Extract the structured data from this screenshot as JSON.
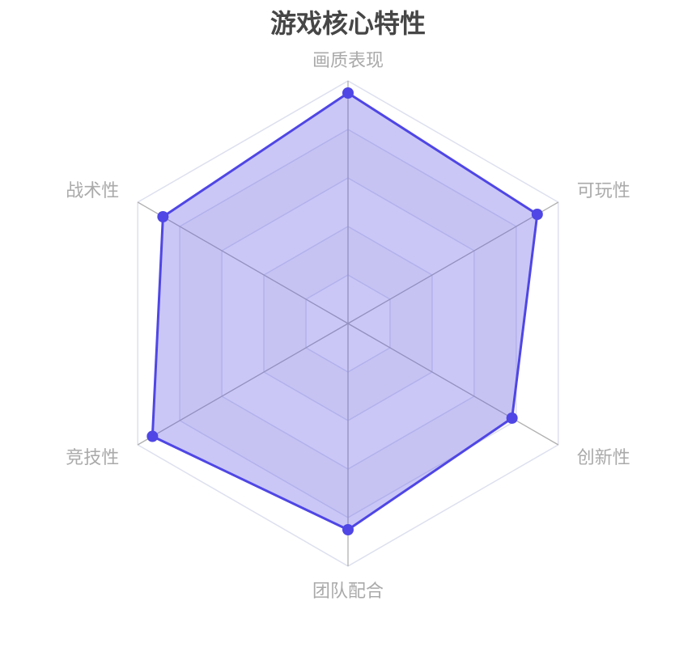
{
  "chart_data": {
    "type": "radar",
    "title": "游戏核心特性",
    "indicators": [
      "画质表现",
      "可玩性",
      "创新性",
      "团队配合",
      "竞技性",
      "战术性"
    ],
    "max": 100,
    "split_number": 5,
    "series": [
      {
        "values": [
          95,
          90,
          78,
          85,
          93,
          88
        ]
      }
    ],
    "colors": {
      "line": "#4f46e5",
      "area": "#4f46e5",
      "split_area": [
        "#fafafa",
        "#ffffff"
      ],
      "split_line": "#dde0ee",
      "axis_line": "#b0b0b0",
      "label": "#aaaaaa",
      "title": "#464646"
    }
  }
}
